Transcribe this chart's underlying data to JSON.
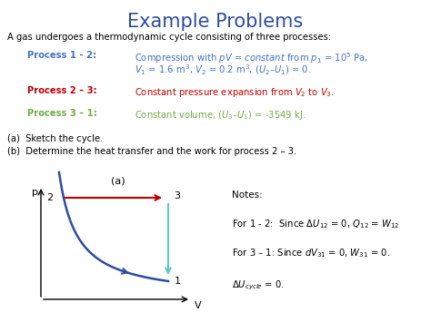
{
  "title": "Example Problems",
  "title_color": "#2E4DA0",
  "title_fontsize": 15,
  "bg_color": "#FFFFFF",
  "intro_text": "A gas undergoes a thermodynamic cycle consisting of three processes:",
  "proc1_label": "Process 1 - 2:",
  "proc1_color": "#4472C4",
  "proc1_desc_line1": "Compression with $pV$ = $\\mathit{constant}$ from $p_1$ = 10$^5$ Pa,",
  "proc1_desc_line2": "$V_1$ = 1.6 m$^3$, $V_2$ = 0.2 m$^3$, $(U_2–U_1)$ = 0.",
  "proc2_label": "Process 2 – 3:",
  "proc2_color": "#C00000",
  "proc2_desc": "Constant pressure expansion from $V_2$ to $V_3$.",
  "proc3_label": "Process 3 – 1:",
  "proc3_color": "#70AD47",
  "proc3_desc": "Constant volume, $(U_3–U_1)$ = -3549 kJ.",
  "q1": "(a)  Sketch the cycle.",
  "q2": "(b)  Determine the heat transfer and the work for process 2 – 3.",
  "diag_label": "(a)",
  "p_label": "p",
  "v_label": "V",
  "curve_color": "#2E4DA0",
  "arrow12_color": "#2E4DA0",
  "arrow23_color": "#C00000",
  "arrow31_color": "#5BC8C8",
  "notes_title": "Notes:",
  "note1": "For 1 - 2:  Since $\\Delta U_{12}$ = 0, $Q_{12}$ = $W_{12}$",
  "note2": "For 3 – 1: Since $dV_{31}$ = 0, $W_{31}$ = 0.",
  "note3": "$\\Delta U_{cycle}$ = 0."
}
